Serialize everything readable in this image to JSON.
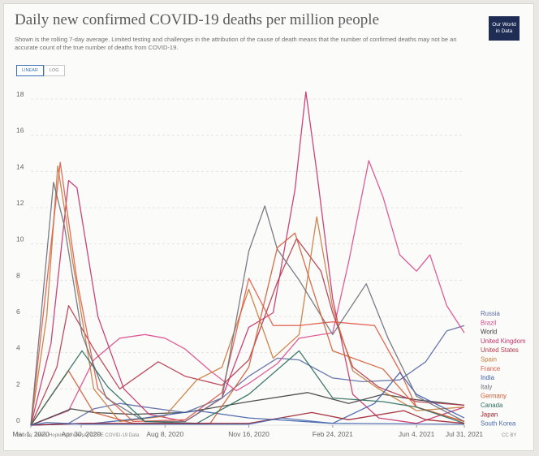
{
  "header": {
    "title": "Daily new confirmed COVID-19 deaths per million people",
    "subtitle": "Shown is the rolling 7-day average. Limited testing and challenges in the attribution of the cause of death means that the number of confirmed deaths may not be an accurate count of the true number of deaths from COVID-19.",
    "logo_line1": "Our World",
    "logo_line2": "in Data"
  },
  "controls": {
    "linear_label": "LINEAR",
    "log_label": "LOG",
    "active": "linear"
  },
  "footer": {
    "source": "Source: Johns Hopkins University CSSE COVID-19 Data",
    "license": "CC BY"
  },
  "colors": {
    "grid": "#e4e4e4",
    "axis_text": "#666666"
  },
  "chart_data": {
    "type": "line",
    "title": "Daily new confirmed COVID-19 deaths per million people",
    "ylim": [
      0,
      18
    ],
    "yticks": [
      0,
      2,
      4,
      6,
      8,
      10,
      12,
      14,
      16,
      18
    ],
    "x_start": "2020-03-01",
    "x_end": "2021-07-31",
    "xticks": [
      {
        "date": "2020-03-01",
        "label": "Mar 1, 2020"
      },
      {
        "date": "2020-04-30",
        "label": "Apr 30, 2020"
      },
      {
        "date": "2020-08-08",
        "label": "Aug 8, 2020"
      },
      {
        "date": "2020-11-16",
        "label": "Nov 16, 2020"
      },
      {
        "date": "2021-02-24",
        "label": "Feb 24, 2021"
      },
      {
        "date": "2021-06-04",
        "label": "Jun 4, 2021"
      },
      {
        "date": "2021-07-31",
        "label": "Jul 31, 2021"
      }
    ],
    "grid": true,
    "legend_position": "right",
    "series": [
      {
        "name": "Russia",
        "color": "#5a6aa3",
        "points": [
          [
            "2020-03-01",
            0
          ],
          [
            "2020-04-15",
            0.1
          ],
          [
            "2020-05-15",
            0.9
          ],
          [
            "2020-06-15",
            1.2
          ],
          [
            "2020-07-15",
            1.0
          ],
          [
            "2020-09-01",
            0.7
          ],
          [
            "2020-10-15",
            1.5
          ],
          [
            "2020-11-16",
            2.7
          ],
          [
            "2020-12-20",
            3.7
          ],
          [
            "2021-01-15",
            3.6
          ],
          [
            "2021-02-24",
            2.6
          ],
          [
            "2021-04-01",
            2.4
          ],
          [
            "2021-05-15",
            2.5
          ],
          [
            "2021-06-15",
            3.5
          ],
          [
            "2021-07-10",
            5.2
          ],
          [
            "2021-07-31",
            5.5
          ]
        ]
      },
      {
        "name": "Brazil",
        "color": "#d94b8c",
        "points": [
          [
            "2020-03-01",
            0
          ],
          [
            "2020-04-15",
            0.8
          ],
          [
            "2020-05-15",
            3.6
          ],
          [
            "2020-06-15",
            4.8
          ],
          [
            "2020-07-15",
            5.0
          ],
          [
            "2020-08-08",
            4.8
          ],
          [
            "2020-09-01",
            4.2
          ],
          [
            "2020-10-01",
            3.0
          ],
          [
            "2020-11-01",
            1.9
          ],
          [
            "2020-11-16",
            2.3
          ],
          [
            "2020-12-20",
            3.4
          ],
          [
            "2021-01-15",
            4.8
          ],
          [
            "2021-02-24",
            5.1
          ],
          [
            "2021-03-15",
            9.0
          ],
          [
            "2021-04-08",
            14.6
          ],
          [
            "2021-04-25",
            12.6
          ],
          [
            "2021-05-15",
            9.4
          ],
          [
            "2021-06-04",
            8.5
          ],
          [
            "2021-06-20",
            9.4
          ],
          [
            "2021-07-10",
            6.6
          ],
          [
            "2021-07-31",
            5.1
          ]
        ]
      },
      {
        "name": "World",
        "color": "#3d3d3d",
        "points": [
          [
            "2020-03-01",
            0
          ],
          [
            "2020-04-18",
            0.9
          ],
          [
            "2020-05-15",
            0.7
          ],
          [
            "2020-07-01",
            0.6
          ],
          [
            "2020-09-01",
            0.7
          ],
          [
            "2020-11-16",
            1.3
          ],
          [
            "2021-01-25",
            1.8
          ],
          [
            "2021-03-15",
            1.2
          ],
          [
            "2021-04-25",
            1.7
          ],
          [
            "2021-06-04",
            1.4
          ],
          [
            "2021-07-31",
            1.1
          ]
        ]
      },
      {
        "name": "United Kingdom",
        "color": "#c4316a",
        "points": [
          [
            "2020-03-01",
            0
          ],
          [
            "2020-03-25",
            4.5
          ],
          [
            "2020-04-15",
            13.5
          ],
          [
            "2020-04-25",
            13.1
          ],
          [
            "2020-05-20",
            6.0
          ],
          [
            "2020-06-20",
            2.0
          ],
          [
            "2020-07-20",
            0.6
          ],
          [
            "2020-09-01",
            0.2
          ],
          [
            "2020-10-15",
            1.5
          ],
          [
            "2020-11-16",
            5.4
          ],
          [
            "2020-12-15",
            6.2
          ],
          [
            "2021-01-10",
            13.0
          ],
          [
            "2021-01-23",
            18.4
          ],
          [
            "2021-02-05",
            14.0
          ],
          [
            "2021-02-24",
            7.0
          ],
          [
            "2021-03-20",
            1.7
          ],
          [
            "2021-04-20",
            0.4
          ],
          [
            "2021-06-04",
            0.1
          ],
          [
            "2021-07-31",
            1.0
          ]
        ]
      },
      {
        "name": "United States",
        "color": "#b43a4e",
        "points": [
          [
            "2020-03-01",
            0
          ],
          [
            "2020-04-01",
            3.2
          ],
          [
            "2020-04-15",
            6.6
          ],
          [
            "2020-05-15",
            4.2
          ],
          [
            "2020-06-15",
            2.0
          ],
          [
            "2020-07-31",
            3.5
          ],
          [
            "2020-09-01",
            2.7
          ],
          [
            "2020-10-15",
            2.2
          ],
          [
            "2020-11-16",
            3.6
          ],
          [
            "2020-12-20",
            7.9
          ],
          [
            "2021-01-12",
            10.3
          ],
          [
            "2021-02-10",
            8.5
          ],
          [
            "2021-02-24",
            6.2
          ],
          [
            "2021-03-20",
            3.2
          ],
          [
            "2021-04-20",
            2.1
          ],
          [
            "2021-06-04",
            1.3
          ],
          [
            "2021-07-31",
            1.1
          ]
        ]
      },
      {
        "name": "Spain",
        "color": "#c87a3b",
        "points": [
          [
            "2020-03-01",
            0
          ],
          [
            "2020-03-20",
            6.0
          ],
          [
            "2020-04-02",
            14.3
          ],
          [
            "2020-04-20",
            9.0
          ],
          [
            "2020-05-15",
            2.0
          ],
          [
            "2020-06-15",
            0.2
          ],
          [
            "2020-08-08",
            0.5
          ],
          [
            "2020-09-15",
            2.5
          ],
          [
            "2020-10-15",
            3.2
          ],
          [
            "2020-11-16",
            7.5
          ],
          [
            "2020-12-15",
            3.7
          ],
          [
            "2021-01-15",
            5.0
          ],
          [
            "2021-02-05",
            11.5
          ],
          [
            "2021-02-24",
            6.5
          ],
          [
            "2021-03-20",
            3.0
          ],
          [
            "2021-04-20",
            2.0
          ],
          [
            "2021-06-04",
            0.8
          ],
          [
            "2021-07-31",
            1.0
          ]
        ]
      },
      {
        "name": "France",
        "color": "#e05a47",
        "points": [
          [
            "2020-03-01",
            0
          ],
          [
            "2020-04-05",
            14.5
          ],
          [
            "2020-04-25",
            8.0
          ],
          [
            "2020-05-20",
            2.0
          ],
          [
            "2020-07-01",
            0.2
          ],
          [
            "2020-09-01",
            0.3
          ],
          [
            "2020-10-15",
            1.8
          ],
          [
            "2020-11-16",
            8.1
          ],
          [
            "2020-12-15",
            5.5
          ],
          [
            "2021-01-15",
            5.5
          ],
          [
            "2021-02-24",
            5.7
          ],
          [
            "2021-04-15",
            5.5
          ],
          [
            "2021-05-15",
            3.0
          ],
          [
            "2021-06-04",
            1.0
          ],
          [
            "2021-07-31",
            0.2
          ]
        ]
      },
      {
        "name": "India",
        "color": "#3f5ea8",
        "points": [
          [
            "2020-03-01",
            0
          ],
          [
            "2020-05-15",
            0.1
          ],
          [
            "2020-07-15",
            0.4
          ],
          [
            "2020-09-15",
            0.8
          ],
          [
            "2020-11-16",
            0.4
          ],
          [
            "2021-02-24",
            0.1
          ],
          [
            "2021-04-15",
            1.2
          ],
          [
            "2021-05-15",
            2.9
          ],
          [
            "2021-06-04",
            1.7
          ],
          [
            "2021-07-31",
            0.4
          ]
        ]
      },
      {
        "name": "Italy",
        "color": "#6a6e7a",
        "points": [
          [
            "2020-03-01",
            0
          ],
          [
            "2020-03-28",
            13.4
          ],
          [
            "2020-04-10",
            11.0
          ],
          [
            "2020-05-01",
            5.0
          ],
          [
            "2020-05-30",
            1.5
          ],
          [
            "2020-07-15",
            0.2
          ],
          [
            "2020-09-01",
            0.2
          ],
          [
            "2020-10-15",
            1.5
          ],
          [
            "2020-11-16",
            9.6
          ],
          [
            "2020-12-05",
            12.1
          ],
          [
            "2020-12-20",
            9.7
          ],
          [
            "2021-01-15",
            8.0
          ],
          [
            "2021-02-24",
            5.0
          ],
          [
            "2021-04-05",
            7.8
          ],
          [
            "2021-05-01",
            4.8
          ],
          [
            "2021-06-04",
            1.6
          ],
          [
            "2021-07-31",
            0.2
          ]
        ]
      },
      {
        "name": "Germany",
        "color": "#d05c35",
        "points": [
          [
            "2020-03-01",
            0
          ],
          [
            "2020-04-15",
            3.0
          ],
          [
            "2020-05-15",
            0.7
          ],
          [
            "2020-07-01",
            0.1
          ],
          [
            "2020-10-01",
            0.1
          ],
          [
            "2020-11-16",
            3.2
          ],
          [
            "2020-12-20",
            9.8
          ],
          [
            "2021-01-10",
            10.6
          ],
          [
            "2021-02-05",
            6.8
          ],
          [
            "2021-02-24",
            4.1
          ],
          [
            "2021-04-25",
            3.1
          ],
          [
            "2021-06-04",
            1.0
          ],
          [
            "2021-07-31",
            0.2
          ]
        ]
      },
      {
        "name": "Canada",
        "color": "#2e6b5e",
        "points": [
          [
            "2020-03-01",
            0
          ],
          [
            "2020-05-01",
            4.1
          ],
          [
            "2020-06-01",
            2.1
          ],
          [
            "2020-07-15",
            0.2
          ],
          [
            "2020-09-15",
            0.1
          ],
          [
            "2020-11-16",
            1.7
          ],
          [
            "2021-01-15",
            4.1
          ],
          [
            "2021-02-24",
            1.5
          ],
          [
            "2021-04-25",
            1.3
          ],
          [
            "2021-06-04",
            1.0
          ],
          [
            "2021-07-31",
            0.1
          ]
        ]
      },
      {
        "name": "Japan",
        "color": "#9c1f2d",
        "points": [
          [
            "2020-03-01",
            0
          ],
          [
            "2020-05-01",
            0.1
          ],
          [
            "2020-08-25",
            0.1
          ],
          [
            "2020-11-16",
            0.1
          ],
          [
            "2021-01-30",
            0.7
          ],
          [
            "2021-03-15",
            0.3
          ],
          [
            "2021-05-20",
            0.8
          ],
          [
            "2021-06-15",
            0.3
          ],
          [
            "2021-07-31",
            0.1
          ]
        ]
      },
      {
        "name": "South Korea",
        "color": "#4b6bb0",
        "points": [
          [
            "2020-03-01",
            0
          ],
          [
            "2020-03-20",
            0.15
          ],
          [
            "2020-05-01",
            0.05
          ],
          [
            "2020-11-16",
            0.05
          ],
          [
            "2020-12-25",
            0.4
          ],
          [
            "2021-02-24",
            0.1
          ],
          [
            "2021-07-31",
            0.05
          ]
        ]
      }
    ]
  }
}
